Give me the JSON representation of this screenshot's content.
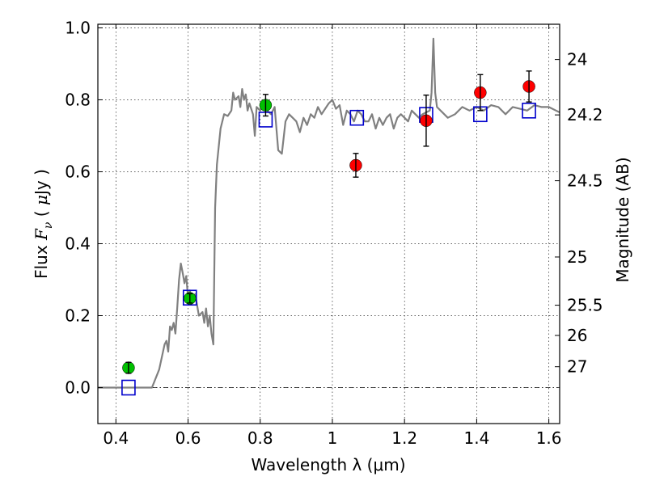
{
  "chart_data": {
    "type": "scatter",
    "title": "",
    "xlabel": "Wavelength  λ (μm)",
    "ylabel_parts": [
      "Flux ",
      "F",
      "ν",
      " ( ",
      "μ",
      "Jy )"
    ],
    "right_ylabel": "Magnitude (AB)",
    "xlim": [
      0.35,
      1.63
    ],
    "ylim": [
      -0.1,
      1.01
    ],
    "grid": true,
    "x_ticks": [
      {
        "value": 0.4,
        "label": "0.4"
      },
      {
        "value": 0.6,
        "label": "0.6"
      },
      {
        "value": 0.8,
        "label": "0.8"
      },
      {
        "value": 1.0,
        "label": "1"
      },
      {
        "value": 1.2,
        "label": "1.2"
      },
      {
        "value": 1.4,
        "label": "1.4"
      },
      {
        "value": 1.6,
        "label": "1.6"
      }
    ],
    "y_ticks": [
      {
        "value": 0.0,
        "label": "0.0"
      },
      {
        "value": 0.2,
        "label": "0.2"
      },
      {
        "value": 0.4,
        "label": "0.4"
      },
      {
        "value": 0.6,
        "label": "0.6"
      },
      {
        "value": 0.8,
        "label": "0.8"
      },
      {
        "value": 1.0,
        "label": "1.0"
      }
    ],
    "right_ticks": [
      {
        "label": "24",
        "flux": 0.912
      },
      {
        "label": "24.2",
        "flux": 0.758
      },
      {
        "label": "24.5",
        "flux": 0.575
      },
      {
        "label": "25",
        "flux": 0.363
      },
      {
        "label": "25.5",
        "flux": 0.229
      },
      {
        "label": "26",
        "flux": 0.145
      },
      {
        "label": "27",
        "flux": 0.058
      }
    ],
    "series": [
      {
        "name": "model-spectrum",
        "kind": "line",
        "color": "#808080",
        "points": [
          [
            0.35,
            0.0
          ],
          [
            0.5,
            0.0
          ],
          [
            0.52,
            0.05
          ],
          [
            0.535,
            0.12
          ],
          [
            0.54,
            0.13
          ],
          [
            0.545,
            0.1
          ],
          [
            0.55,
            0.17
          ],
          [
            0.555,
            0.16
          ],
          [
            0.56,
            0.18
          ],
          [
            0.565,
            0.15
          ],
          [
            0.57,
            0.22
          ],
          [
            0.575,
            0.3
          ],
          [
            0.58,
            0.345
          ],
          [
            0.585,
            0.32
          ],
          [
            0.59,
            0.29
          ],
          [
            0.595,
            0.31
          ],
          [
            0.6,
            0.25
          ],
          [
            0.605,
            0.27
          ],
          [
            0.61,
            0.24
          ],
          [
            0.62,
            0.26
          ],
          [
            0.63,
            0.2
          ],
          [
            0.64,
            0.21
          ],
          [
            0.645,
            0.18
          ],
          [
            0.65,
            0.22
          ],
          [
            0.655,
            0.17
          ],
          [
            0.66,
            0.2
          ],
          [
            0.665,
            0.15
          ],
          [
            0.67,
            0.12
          ],
          [
            0.675,
            0.5
          ],
          [
            0.68,
            0.62
          ],
          [
            0.69,
            0.72
          ],
          [
            0.7,
            0.76
          ],
          [
            0.71,
            0.755
          ],
          [
            0.72,
            0.77
          ],
          [
            0.725,
            0.82
          ],
          [
            0.73,
            0.8
          ],
          [
            0.74,
            0.81
          ],
          [
            0.745,
            0.78
          ],
          [
            0.75,
            0.83
          ],
          [
            0.755,
            0.8
          ],
          [
            0.76,
            0.815
          ],
          [
            0.765,
            0.77
          ],
          [
            0.77,
            0.79
          ],
          [
            0.78,
            0.76
          ],
          [
            0.785,
            0.7
          ],
          [
            0.79,
            0.78
          ],
          [
            0.8,
            0.77
          ],
          [
            0.81,
            0.79
          ],
          [
            0.82,
            0.77
          ],
          [
            0.83,
            0.76
          ],
          [
            0.84,
            0.78
          ],
          [
            0.85,
            0.66
          ],
          [
            0.86,
            0.65
          ],
          [
            0.87,
            0.74
          ],
          [
            0.88,
            0.76
          ],
          [
            0.89,
            0.75
          ],
          [
            0.9,
            0.74
          ],
          [
            0.91,
            0.71
          ],
          [
            0.92,
            0.75
          ],
          [
            0.93,
            0.73
          ],
          [
            0.94,
            0.76
          ],
          [
            0.95,
            0.75
          ],
          [
            0.96,
            0.78
          ],
          [
            0.97,
            0.76
          ],
          [
            0.98,
            0.775
          ],
          [
            0.99,
            0.79
          ],
          [
            1.0,
            0.8
          ],
          [
            1.01,
            0.775
          ],
          [
            1.02,
            0.785
          ],
          [
            1.03,
            0.73
          ],
          [
            1.04,
            0.77
          ],
          [
            1.05,
            0.76
          ],
          [
            1.06,
            0.74
          ],
          [
            1.07,
            0.77
          ],
          [
            1.08,
            0.76
          ],
          [
            1.09,
            0.74
          ],
          [
            1.1,
            0.74
          ],
          [
            1.11,
            0.76
          ],
          [
            1.12,
            0.72
          ],
          [
            1.13,
            0.75
          ],
          [
            1.14,
            0.73
          ],
          [
            1.15,
            0.75
          ],
          [
            1.16,
            0.76
          ],
          [
            1.17,
            0.72
          ],
          [
            1.18,
            0.75
          ],
          [
            1.19,
            0.76
          ],
          [
            1.2,
            0.75
          ],
          [
            1.21,
            0.74
          ],
          [
            1.22,
            0.77
          ],
          [
            1.23,
            0.76
          ],
          [
            1.24,
            0.75
          ],
          [
            1.25,
            0.76
          ],
          [
            1.26,
            0.765
          ],
          [
            1.27,
            0.77
          ],
          [
            1.275,
            0.82
          ],
          [
            1.28,
            0.97
          ],
          [
            1.285,
            0.82
          ],
          [
            1.29,
            0.78
          ],
          [
            1.3,
            0.77
          ],
          [
            1.32,
            0.75
          ],
          [
            1.34,
            0.76
          ],
          [
            1.36,
            0.78
          ],
          [
            1.38,
            0.77
          ],
          [
            1.4,
            0.78
          ],
          [
            1.42,
            0.77
          ],
          [
            1.44,
            0.785
          ],
          [
            1.46,
            0.78
          ],
          [
            1.48,
            0.76
          ],
          [
            1.5,
            0.78
          ],
          [
            1.52,
            0.775
          ],
          [
            1.54,
            0.77
          ],
          [
            1.56,
            0.785
          ],
          [
            1.58,
            0.78
          ],
          [
            1.6,
            0.78
          ],
          [
            1.62,
            0.77
          ],
          [
            1.63,
            0.765
          ]
        ]
      },
      {
        "name": "green-photometry",
        "kind": "circle",
        "color": "#00c000",
        "points": [
          {
            "x": 0.435,
            "y": 0.055,
            "err": 0.015
          },
          {
            "x": 0.605,
            "y": 0.248,
            "err": 0.013
          },
          {
            "x": 0.815,
            "y": 0.785,
            "err": 0.03
          }
        ]
      },
      {
        "name": "red-photometry",
        "kind": "circle",
        "color": "#ff0000",
        "points": [
          {
            "x": 1.065,
            "y": 0.618,
            "err": 0.033
          },
          {
            "x": 1.26,
            "y": 0.742,
            "err": 0.071
          },
          {
            "x": 1.41,
            "y": 0.82,
            "err": 0.05
          },
          {
            "x": 1.545,
            "y": 0.837,
            "err": 0.043
          }
        ]
      },
      {
        "name": "model-bandpass",
        "kind": "square",
        "color": "#0000cc",
        "points": [
          {
            "x": 0.435,
            "y": 0.0
          },
          {
            "x": 0.605,
            "y": 0.25
          },
          {
            "x": 0.815,
            "y": 0.745
          },
          {
            "x": 1.068,
            "y": 0.75
          },
          {
            "x": 1.26,
            "y": 0.758
          },
          {
            "x": 1.41,
            "y": 0.76
          },
          {
            "x": 1.545,
            "y": 0.77
          }
        ]
      }
    ]
  }
}
